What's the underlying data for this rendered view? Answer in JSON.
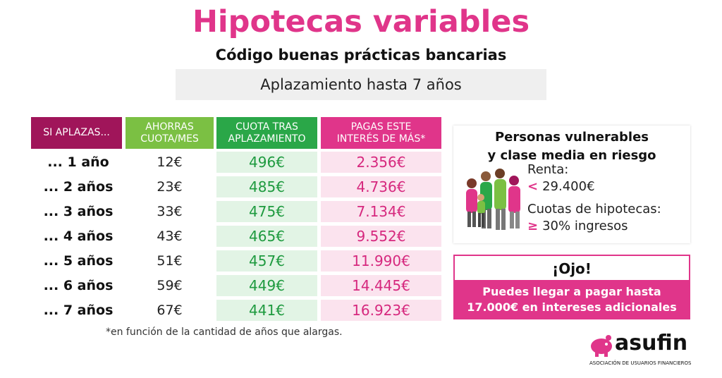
{
  "title": "Hipotecas variables",
  "subtitle": "Código buenas prácticas bancarias",
  "banner": "Aplazamiento hasta 7 años",
  "table": {
    "headers": {
      "col0": "SI APLAZAS...",
      "col1_a": "AHORRAS",
      "col1_b": "CUOTA/MES",
      "col2_a": "CUOTA TRAS",
      "col2_b": "APLAZAMIENTO",
      "col3_a": "PAGAS ESTE",
      "col3_b": "INTERÉS DE MÁS*"
    },
    "rows": [
      {
        "period": "... 1 año",
        "saving": "12€",
        "quota": "496€",
        "interest": "2.356€"
      },
      {
        "period": "... 2 años",
        "saving": "23€",
        "quota": "485€",
        "interest": "4.736€"
      },
      {
        "period": "... 3 años",
        "saving": "33€",
        "quota": "475€",
        "interest": "7.134€"
      },
      {
        "period": "... 4 años",
        "saving": "43€",
        "quota": "465€",
        "interest": "9.552€"
      },
      {
        "period": "... 5 años",
        "saving": "51€",
        "quota": "457€",
        "interest": "11.990€"
      },
      {
        "period": "... 6 años",
        "saving": "59€",
        "quota": "449€",
        "interest": "14.445€"
      },
      {
        "period": "... 7 años",
        "saving": "67€",
        "quota": "441€",
        "interest": "16.923€"
      }
    ]
  },
  "footnote": "*en función de la cantidad de años que alargas.",
  "card": {
    "title_a": "Personas vulnerables",
    "title_b": "y clase media en riesgo",
    "renta_label": "Renta:",
    "renta_symbol": "<",
    "renta_value": "29.400€",
    "cuotas_label": "Cuotas de hipotecas:",
    "cuotas_symbol": "≥",
    "cuotas_value": "30% ingresos"
  },
  "ojo": {
    "title": "¡Ojo!",
    "msg_a": "Puedes llegar a pagar hasta",
    "msg_b": "17.000€ en intereses adicionales"
  },
  "logo": {
    "name": "asufin",
    "tagline": "ASOCIACIÓN DE USUARIOS FINANCIEROS"
  },
  "colors": {
    "brand_pink": "#e0358a",
    "dark_magenta": "#a0155a",
    "light_green": "#7bc043",
    "green": "#2aa748"
  },
  "icons": [
    "family-icon",
    "piggy-bank-icon"
  ]
}
